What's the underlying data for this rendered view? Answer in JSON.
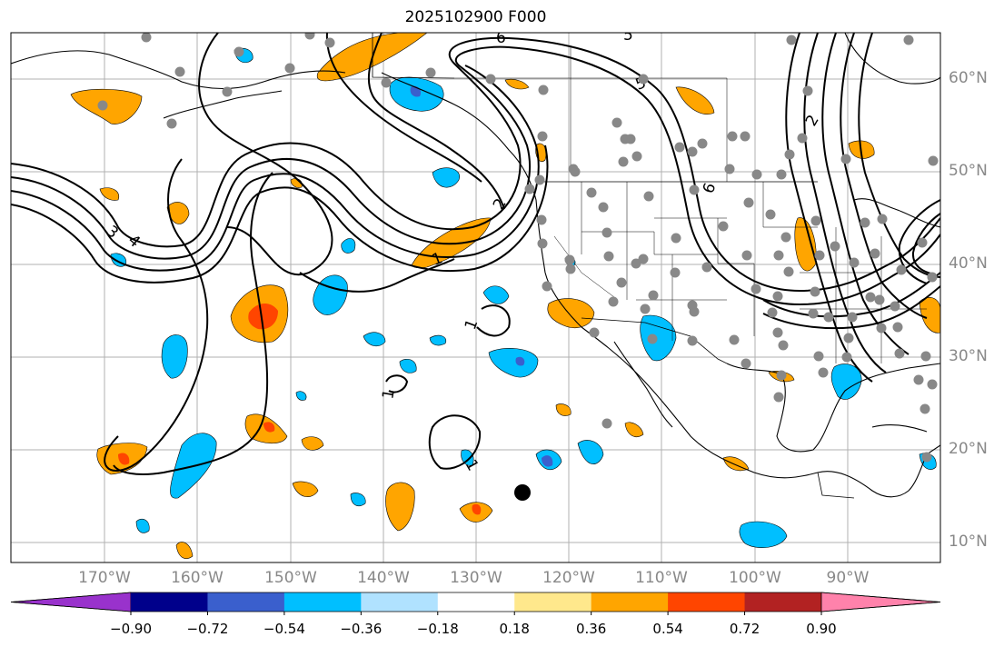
{
  "title": "2025102900 F000",
  "map": {
    "lon_labels": [
      "170°W",
      "160°W",
      "150°W",
      "140°W",
      "130°W",
      "120°W",
      "110°W",
      "100°W",
      "90°W"
    ],
    "lat_labels": [
      "60°N",
      "50°N",
      "40°N",
      "30°N",
      "20°N",
      "10°N"
    ],
    "contour_labels": [
      "6",
      "5",
      "4",
      "3",
      "2",
      "1",
      "1",
      "1",
      "1",
      "1",
      "2",
      "6",
      "5"
    ],
    "palette": {
      "purple": "#9932cc",
      "navy": "#00008b",
      "royal": "#3a5fcd",
      "cyan": "#00bfff",
      "lightblue": "#b0e2ff",
      "white": "#ffffff",
      "yellow": "#ffe88c",
      "orange": "#ffa500",
      "red": "#ff4500",
      "darkred": "#b22222",
      "pink": "#ff82ab",
      "station": "#888888",
      "grid": "#b0b0b0",
      "contour": "#000000"
    }
  },
  "colorbar": {
    "ticks": [
      "−0.90",
      "−0.72",
      "−0.54",
      "−0.36",
      "−0.18",
      "0.18",
      "0.36",
      "0.54",
      "0.72",
      "0.90"
    ],
    "levels": [
      -0.9,
      -0.72,
      -0.54,
      -0.36,
      -0.18,
      0.18,
      0.36,
      0.54,
      0.72,
      0.9
    ],
    "colors": [
      "#9932cc",
      "#00008b",
      "#3a5fcd",
      "#00bfff",
      "#b0e2ff",
      "#ffffff",
      "#ffe88c",
      "#ffa500",
      "#ff4500",
      "#b22222",
      "#ff82ab"
    ]
  }
}
